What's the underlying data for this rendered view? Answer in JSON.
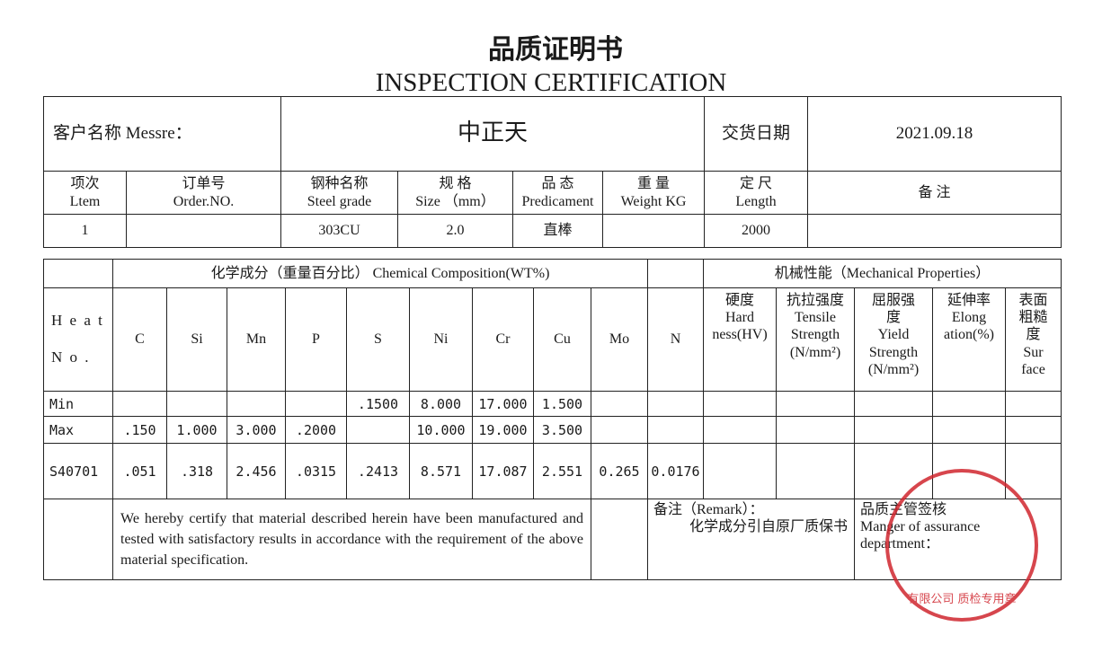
{
  "title_cn": "品质证明书",
  "title_en": "INSPECTION CERTIFICATION",
  "customer": {
    "label": "客户名称 Messre：",
    "value": "中正天",
    "date_label": "交货日期",
    "date": "2021.09.18"
  },
  "order_headers": [
    [
      "项次",
      "Ltem"
    ],
    [
      "订单号",
      "Order.NO."
    ],
    [
      "钢种名称",
      "Steel grade"
    ],
    [
      "规 格",
      "Size （mm）"
    ],
    [
      "品 态",
      "Predicament"
    ],
    [
      "重 量",
      "Weight KG"
    ],
    [
      "定 尺",
      "Length"
    ],
    [
      "备 注",
      ""
    ]
  ],
  "order_row": [
    "1",
    "",
    "303CU",
    "2.0",
    "直棒",
    "",
    "2000",
    ""
  ],
  "chem_title": "化学成分（重量百分比） Chemical Composition(WT%)",
  "mech_title": "机械性能（Mechanical Properties）",
  "heat_label": "H e a t\n\nN o .",
  "elements": [
    "C",
    "Si",
    "Mn",
    "P",
    "S",
    "Ni",
    "Cr",
    "Cu",
    "Mo",
    "N"
  ],
  "mech_headers": [
    "硬度\nHard\nness(HV)",
    "抗拉强度\nTensile\nStrength\n(N/mm²)",
    "屈服强\n度\nYield\nStrength\n(N/mm²)",
    "延伸率\nElong\nation(%)",
    "表面\n粗糙\n度\nSur\nface"
  ],
  "rows": [
    {
      "label": "Min",
      "values": [
        "",
        "",
        "",
        "",
        ".1500",
        "8.000",
        "17.000",
        "1.500",
        "",
        ""
      ]
    },
    {
      "label": "Max",
      "values": [
        ".150",
        "1.000",
        "3.000",
        ".2000",
        "",
        "10.000",
        "19.000",
        "3.500",
        "",
        ""
      ]
    },
    {
      "label": "S40701",
      "values": [
        ".051",
        ".318",
        "2.456",
        ".0315",
        ".2413",
        "8.571",
        "17.087",
        "2.551",
        "0.265",
        "0.0176"
      ]
    }
  ],
  "certify_text": "We hereby certify that material described herein have been manufactured and tested with satisfactory results in accordance with the requirement of the above material specification.",
  "remark": {
    "label": "备注（Remark）：",
    "text": "化学成分引自原厂质保书"
  },
  "manager": {
    "label_cn": "品质主管签核",
    "label_en": "Manger of assurance department："
  },
  "stamp_text": "有限公司 质检专用章",
  "stamp_color": "#d0262e"
}
